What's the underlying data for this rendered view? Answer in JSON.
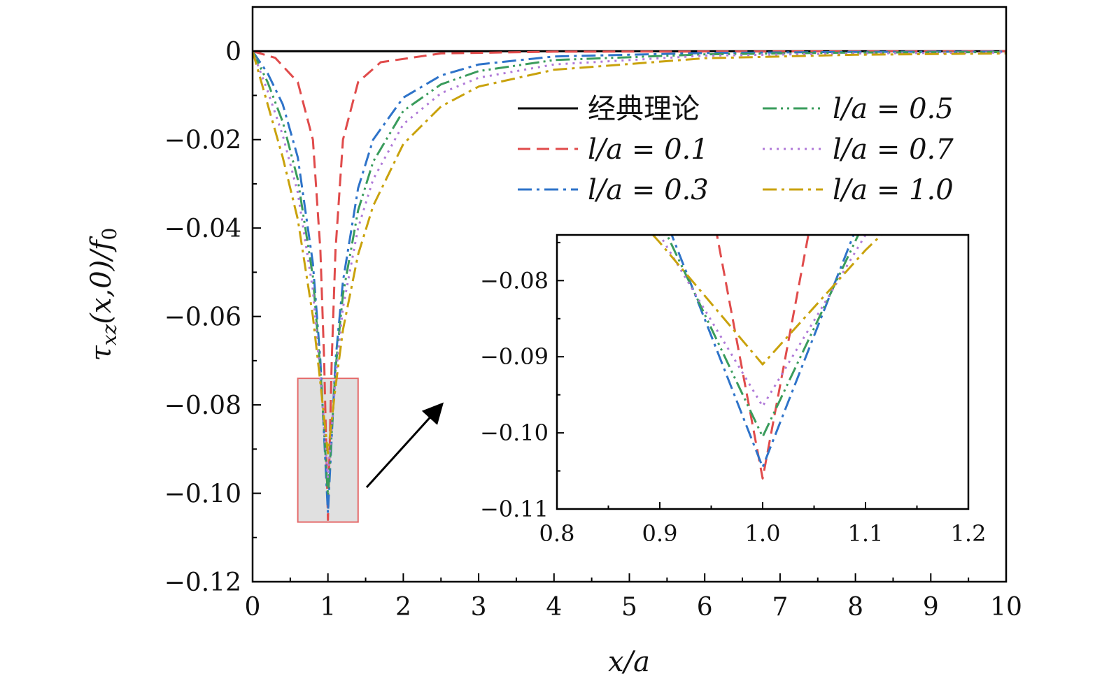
{
  "chart_data": {
    "type": "line",
    "xlabel": "x/a",
    "ylabel": "τxz(x,0)/f0",
    "ylabel_parts": {
      "sym": "τ",
      "sub": "xz",
      "args": "(x,0)/f",
      "sub0": "0"
    },
    "xlim": [
      0,
      10
    ],
    "ylim": [
      -0.12,
      0.01
    ],
    "xticks": [
      "0",
      "1",
      "2",
      "3",
      "4",
      "5",
      "6",
      "7",
      "8",
      "9",
      "10"
    ],
    "yticks": [
      "0",
      "−0.02",
      "−0.04",
      "−0.06",
      "−0.08",
      "−0.10",
      "−0.12"
    ],
    "ytick_values": [
      0,
      -0.02,
      -0.04,
      -0.06,
      -0.08,
      -0.1,
      -0.12
    ],
    "legend": {
      "position": "top-right",
      "columns": 2,
      "entries": [
        "经典理论",
        "l/a = 0.1",
        "l/a = 0.3",
        "l/a = 0.5",
        "l/a = 0.7",
        "l/a = 1.0"
      ]
    },
    "series": [
      {
        "name": "经典理论",
        "color": "#000000",
        "dash": "solid",
        "points": [
          [
            0,
            0
          ],
          [
            10,
            0
          ]
        ]
      },
      {
        "name": "l/a = 0.1",
        "color": "#e04b4b",
        "dash": "dash",
        "points": [
          [
            0,
            0
          ],
          [
            0.3,
            -0.0015
          ],
          [
            0.6,
            -0.007
          ],
          [
            0.8,
            -0.02
          ],
          [
            0.9,
            -0.045
          ],
          [
            0.95,
            -0.07
          ],
          [
            1.0,
            -0.106
          ],
          [
            1.05,
            -0.07
          ],
          [
            1.1,
            -0.045
          ],
          [
            1.2,
            -0.02
          ],
          [
            1.4,
            -0.007
          ],
          [
            1.7,
            -0.0025
          ],
          [
            2.5,
            -0.0005
          ],
          [
            4,
            -0.0001
          ],
          [
            10,
            0
          ]
        ]
      },
      {
        "name": "l/a = 0.3",
        "color": "#2e73c9",
        "dash": "dashdot",
        "points": [
          [
            0,
            0
          ],
          [
            0.2,
            -0.005
          ],
          [
            0.4,
            -0.012
          ],
          [
            0.6,
            -0.024
          ],
          [
            0.8,
            -0.048
          ],
          [
            0.9,
            -0.07
          ],
          [
            1.0,
            -0.1045
          ],
          [
            1.1,
            -0.07
          ],
          [
            1.2,
            -0.052
          ],
          [
            1.4,
            -0.031
          ],
          [
            1.6,
            -0.02
          ],
          [
            2.0,
            -0.0105
          ],
          [
            2.5,
            -0.0055
          ],
          [
            3,
            -0.003
          ],
          [
            4,
            -0.0012
          ],
          [
            6,
            -0.0004
          ],
          [
            8,
            -0.00015
          ],
          [
            10,
            -0.0001
          ]
        ]
      },
      {
        "name": "l/a = 0.5",
        "color": "#3a9c5c",
        "dash": "dashdotdot",
        "points": [
          [
            0,
            0
          ],
          [
            0.2,
            -0.007
          ],
          [
            0.4,
            -0.016
          ],
          [
            0.6,
            -0.029
          ],
          [
            0.8,
            -0.051
          ],
          [
            0.9,
            -0.072
          ],
          [
            1.0,
            -0.1005
          ],
          [
            1.1,
            -0.072
          ],
          [
            1.2,
            -0.055
          ],
          [
            1.4,
            -0.036
          ],
          [
            1.6,
            -0.025
          ],
          [
            2.0,
            -0.0135
          ],
          [
            2.5,
            -0.0075
          ],
          [
            3,
            -0.0045
          ],
          [
            4,
            -0.002
          ],
          [
            6,
            -0.0007
          ],
          [
            8,
            -0.0003
          ],
          [
            10,
            -0.0002
          ]
        ]
      },
      {
        "name": "l/a = 0.7",
        "color": "#b07ad8",
        "dash": "dot",
        "points": [
          [
            0,
            0
          ],
          [
            0.2,
            -0.009
          ],
          [
            0.4,
            -0.019
          ],
          [
            0.6,
            -0.032
          ],
          [
            0.8,
            -0.054
          ],
          [
            0.9,
            -0.074
          ],
          [
            1.0,
            -0.0965
          ],
          [
            1.1,
            -0.074
          ],
          [
            1.2,
            -0.058
          ],
          [
            1.4,
            -0.04
          ],
          [
            1.6,
            -0.029
          ],
          [
            2.0,
            -0.0165
          ],
          [
            2.5,
            -0.0095
          ],
          [
            3,
            -0.006
          ],
          [
            4,
            -0.003
          ],
          [
            6,
            -0.001
          ],
          [
            8,
            -0.0005
          ],
          [
            10,
            -0.0003
          ]
        ]
      },
      {
        "name": "l/a = 1.0",
        "color": "#c9a20c",
        "dash": "dashdot",
        "points": [
          [
            0,
            0
          ],
          [
            0.2,
            -0.012
          ],
          [
            0.4,
            -0.024
          ],
          [
            0.6,
            -0.038
          ],
          [
            0.8,
            -0.06
          ],
          [
            0.9,
            -0.075
          ],
          [
            1.0,
            -0.091
          ],
          [
            1.1,
            -0.076
          ],
          [
            1.2,
            -0.063
          ],
          [
            1.4,
            -0.046
          ],
          [
            1.6,
            -0.035
          ],
          [
            2.0,
            -0.021
          ],
          [
            2.5,
            -0.0125
          ],
          [
            3,
            -0.008
          ],
          [
            4,
            -0.0042
          ],
          [
            6,
            -0.0016
          ],
          [
            8,
            -0.0008
          ],
          [
            10,
            -0.0005
          ]
        ]
      }
    ],
    "highlight_region": {
      "x": [
        0.6,
        1.4
      ],
      "y": [
        -0.1065,
        -0.074
      ]
    },
    "inset": {
      "xlim": [
        0.8,
        1.2
      ],
      "ylim": [
        -0.11,
        -0.074
      ],
      "xticks": [
        "0.8",
        "0.9",
        "1.0",
        "1.1",
        "1.2"
      ],
      "xtick_values": [
        0.8,
        0.9,
        1.0,
        1.1,
        1.2
      ],
      "yticks": [
        "−0.08",
        "−0.09",
        "−0.10",
        "−0.11"
      ],
      "ytick_values": [
        -0.08,
        -0.09,
        -0.1,
        -0.11
      ]
    }
  }
}
